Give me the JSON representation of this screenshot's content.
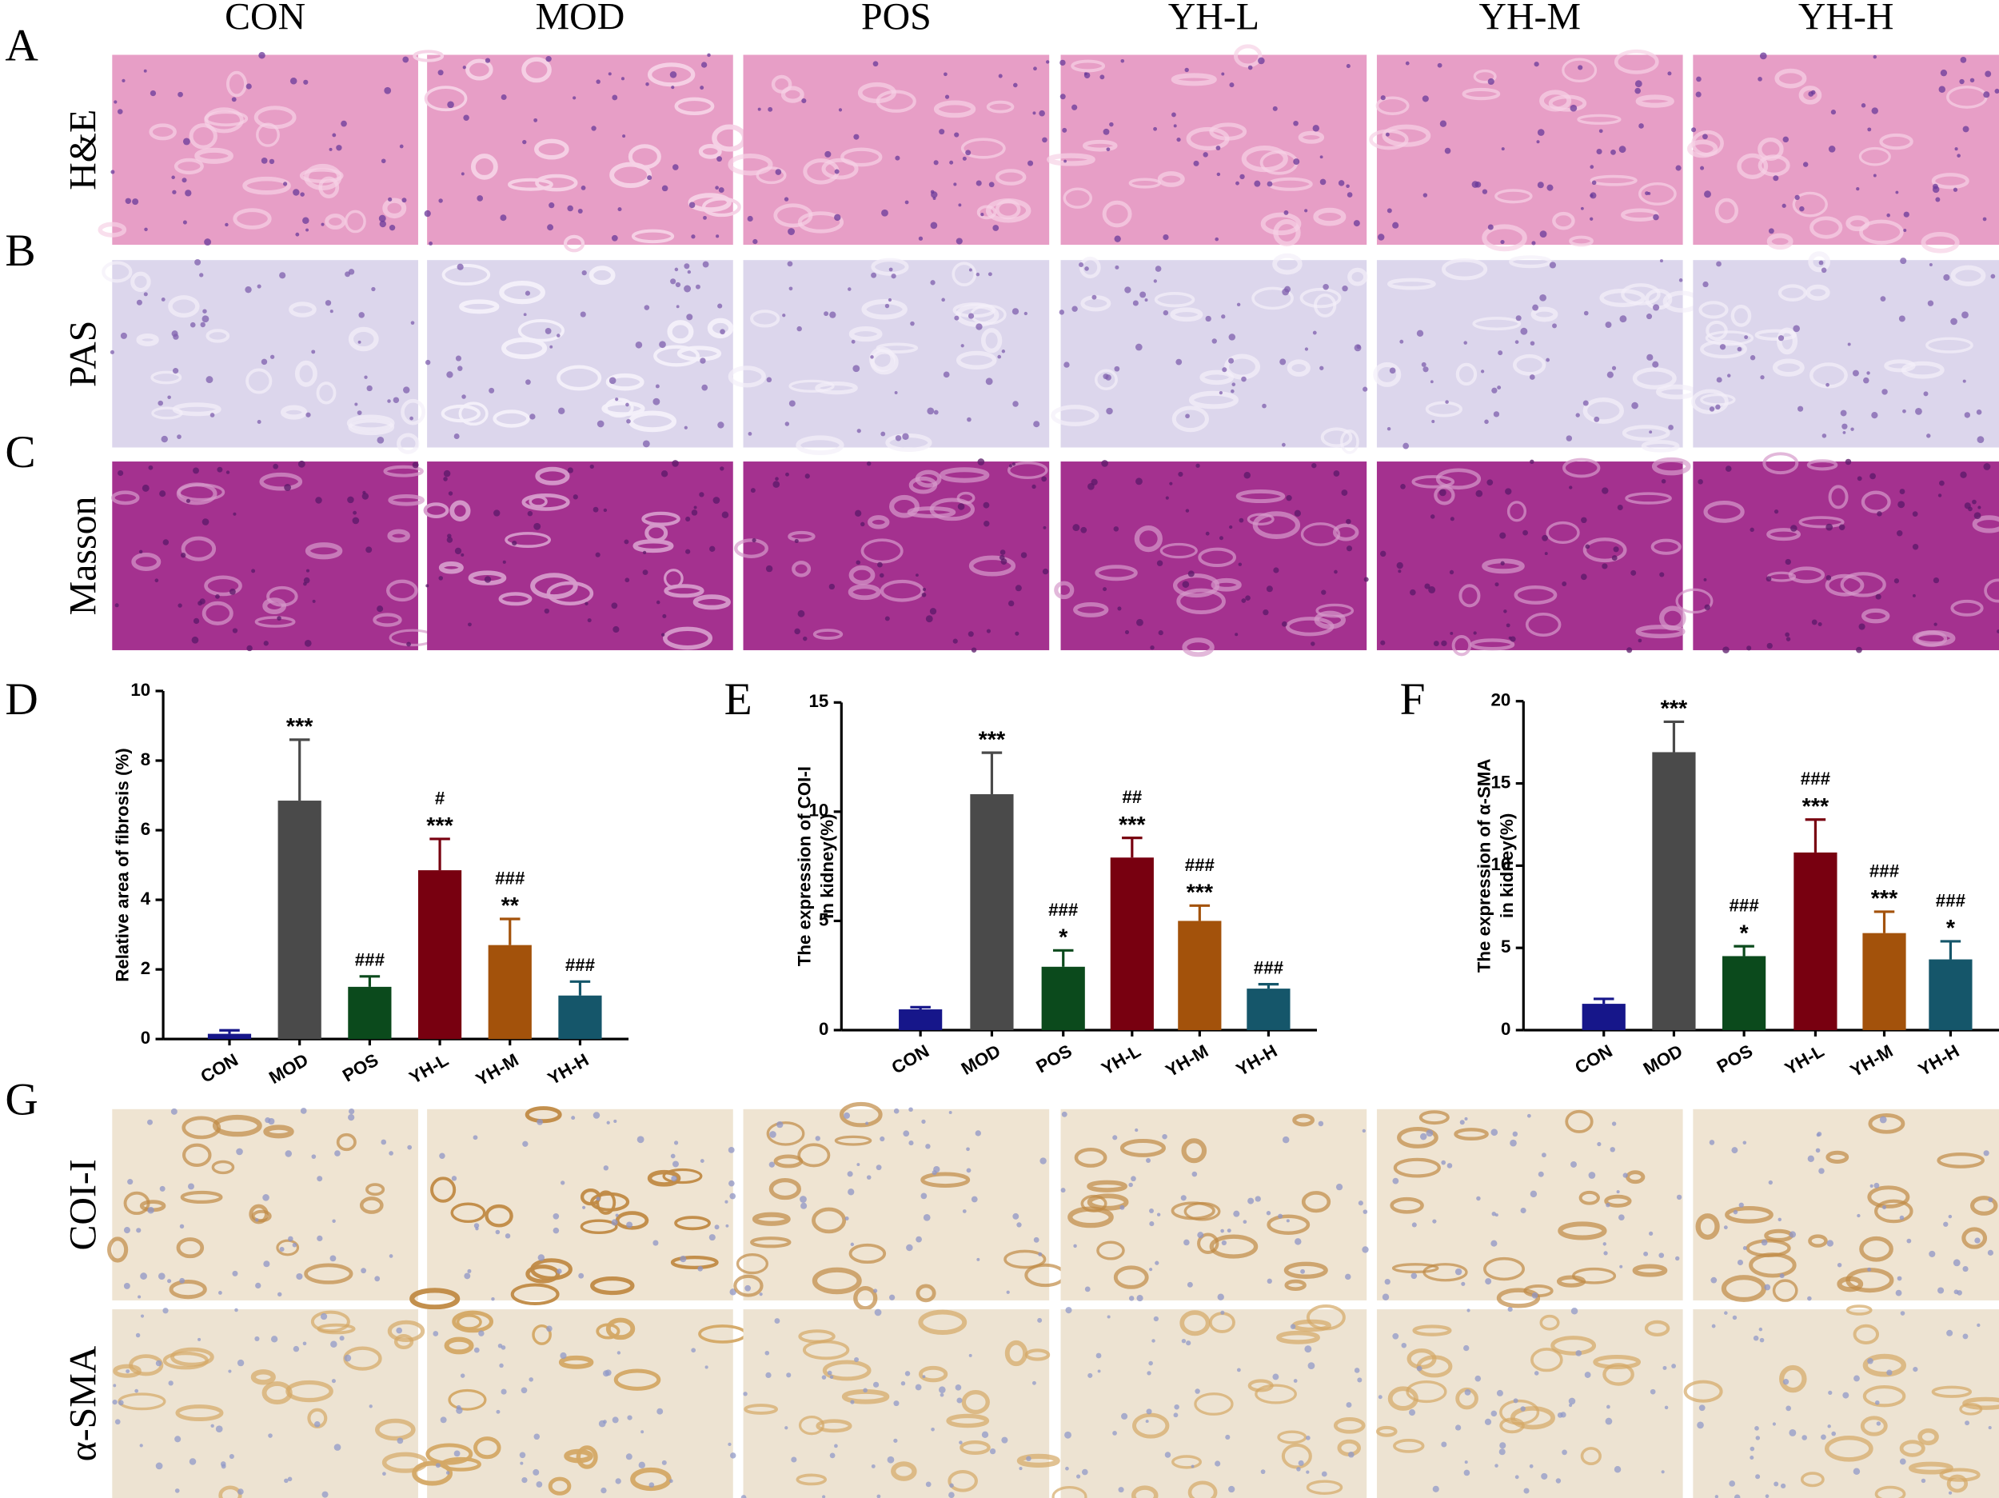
{
  "figure": {
    "columns": [
      "CON",
      "MOD",
      "POS",
      "YH-L",
      "YH-M",
      "YH-H"
    ],
    "image_rows": [
      {
        "panel": "A",
        "stain": "H&E"
      },
      {
        "panel": "B",
        "stain": "PAS"
      },
      {
        "panel": "C",
        "stain": "Masson"
      },
      {
        "panel": "G",
        "stain": "COI-I"
      },
      {
        "stain": "α-SMA"
      }
    ]
  },
  "chart_data": [
    {
      "type": "bar",
      "panel": "D",
      "ylabel": [
        "Relative area of fibrosis (%)"
      ],
      "categories": [
        "CON",
        "MOD",
        "POS",
        "YH-L",
        "YH-M",
        "YH-H"
      ],
      "values": [
        0.15,
        6.85,
        1.5,
        4.85,
        2.7,
        1.25
      ],
      "errors": [
        0.1,
        1.75,
        0.3,
        0.9,
        0.75,
        0.4
      ],
      "colors": [
        "#16168a",
        "#4a4a4a",
        "#0b4a1c",
        "#780010",
        "#a3520b",
        "#15566a"
      ],
      "stars": [
        null,
        "***",
        null,
        "***",
        "**",
        null
      ],
      "hashes": [
        null,
        null,
        "###",
        "#",
        "###",
        "###"
      ],
      "ylim": [
        0,
        10
      ],
      "yticks": [
        0,
        2,
        4,
        6,
        8,
        10
      ]
    },
    {
      "type": "bar",
      "panel": "E",
      "ylabel": [
        "The expression of COI-I",
        "in kidney(%)"
      ],
      "categories": [
        "CON",
        "MOD",
        "POS",
        "YH-L",
        "YH-M",
        "YH-H"
      ],
      "values": [
        0.95,
        10.8,
        2.9,
        7.9,
        5.0,
        1.9
      ],
      "errors": [
        0.1,
        1.9,
        0.75,
        0.9,
        0.7,
        0.2
      ],
      "colors": [
        "#16168a",
        "#4a4a4a",
        "#0b4a1c",
        "#780010",
        "#a3520b",
        "#15566a"
      ],
      "stars": [
        null,
        "***",
        "*",
        "***",
        "***",
        null
      ],
      "hashes": [
        null,
        null,
        "###",
        "##",
        "###",
        "###"
      ],
      "ylim": [
        0,
        15
      ],
      "yticks": [
        0,
        5,
        10,
        15
      ]
    },
    {
      "type": "bar",
      "panel": "F",
      "ylabel": [
        "The expression of α-SMA",
        "in kidney(%)"
      ],
      "categories": [
        "CON",
        "MOD",
        "POS",
        "YH-L",
        "YH-M",
        "YH-H"
      ],
      "values": [
        1.6,
        16.9,
        4.5,
        10.8,
        5.9,
        4.3
      ],
      "errors": [
        0.3,
        1.85,
        0.6,
        2.0,
        1.3,
        1.1
      ],
      "colors": [
        "#16168a",
        "#4a4a4a",
        "#0b4a1c",
        "#780010",
        "#a3520b",
        "#15566a"
      ],
      "stars": [
        null,
        "***",
        "*",
        "***",
        "***",
        "*"
      ],
      "hashes": [
        null,
        null,
        "###",
        "###",
        "###",
        "###"
      ],
      "ylim": [
        0,
        20
      ],
      "yticks": [
        0,
        5,
        10,
        15,
        20
      ]
    }
  ]
}
